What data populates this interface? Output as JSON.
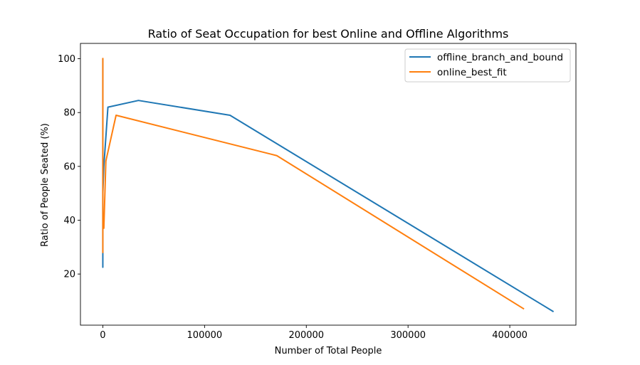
{
  "chart_data": {
    "type": "line",
    "title": "Ratio of Seat Occupation for best Online and Offline Algorithms",
    "xlabel": "Number of Total People",
    "ylabel": "Ratio of People Seated (%)",
    "xlim": [
      -22000,
      465000
    ],
    "ylim": [
      1,
      105.7
    ],
    "xticks": [
      0,
      100000,
      200000,
      300000,
      400000
    ],
    "xtick_labels": [
      "0",
      "100000",
      "200000",
      "300000",
      "400000"
    ],
    "yticks": [
      20,
      40,
      60,
      80,
      100
    ],
    "ytick_labels": [
      "20",
      "40",
      "60",
      "80",
      "100"
    ],
    "grid": false,
    "legend_position": "top-right",
    "series": [
      {
        "name": "offline_branch_and_bound",
        "color": "#1f77b4",
        "x": [
          0,
          0,
          0,
          0,
          0,
          0,
          1000,
          5000,
          35000,
          125000,
          443000
        ],
        "y": [
          100,
          60,
          40,
          22.5,
          28,
          50,
          60,
          82,
          84.5,
          79,
          6
        ]
      },
      {
        "name": "online_best_fit",
        "color": "#ff7f0e",
        "x": [
          0,
          0,
          0,
          0,
          0,
          0,
          500,
          1000,
          3000,
          13000,
          171000,
          414000
        ],
        "y": [
          100.3,
          30,
          80,
          28,
          60,
          40,
          39,
          37,
          62,
          79,
          64,
          7
        ]
      }
    ]
  }
}
